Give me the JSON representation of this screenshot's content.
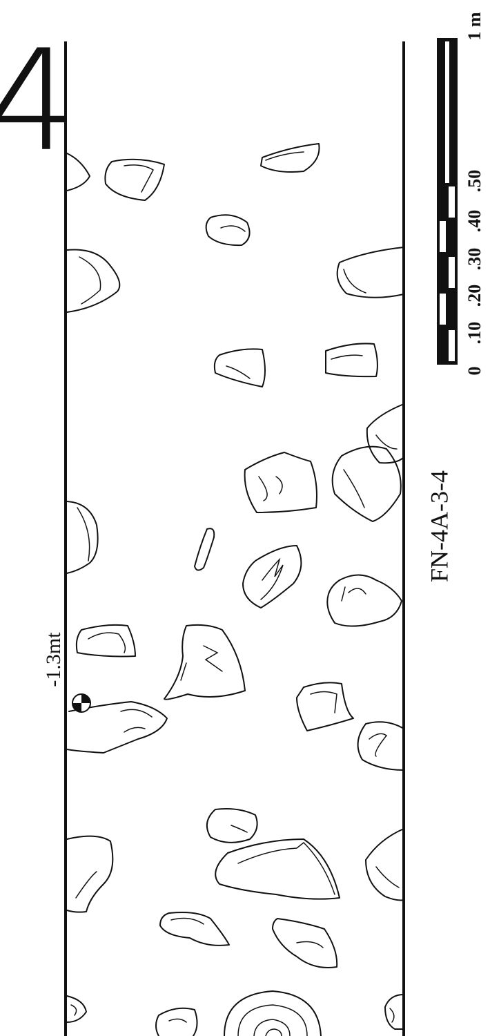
{
  "plan_number": "4",
  "datum_label": "-1.3mt",
  "sheet_id": "FN-4A-3-4",
  "scale": {
    "ticks": [
      "0",
      ".10",
      ".20",
      ".30",
      ".40",
      ".50"
    ],
    "end_label": "1 m"
  }
}
